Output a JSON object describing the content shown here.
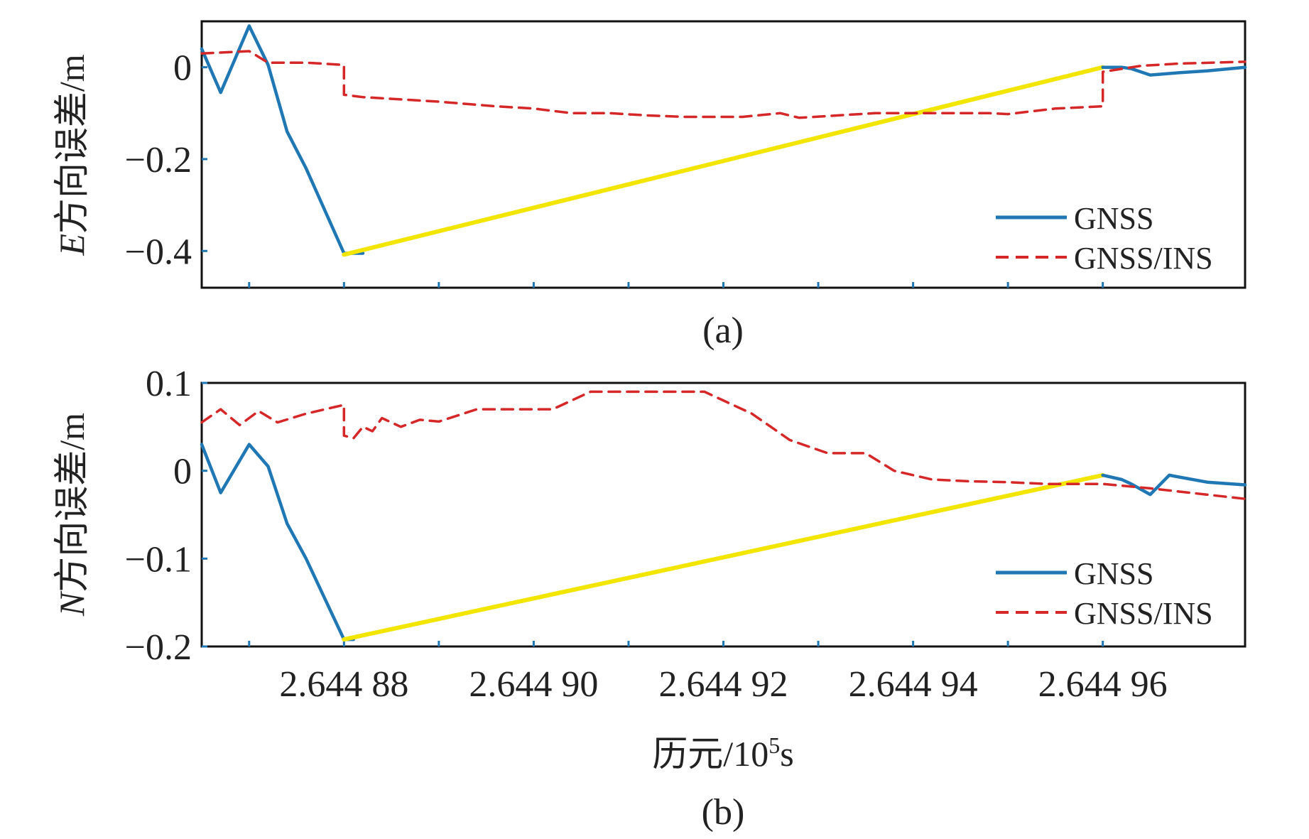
{
  "chart_data": [
    {
      "type": "line",
      "panel": "a",
      "caption": "(a)",
      "ylabel_italic": "E",
      "ylabel": "方向误差/m",
      "ylim": [
        -0.48,
        0.1
      ],
      "yticks": [
        {
          "value": 0,
          "label": "0"
        },
        {
          "value": -0.2,
          "label": "−0.2"
        },
        {
          "value": -0.4,
          "label": "−0.4"
        }
      ],
      "xlim": [
        2.644865,
        2.644975
      ],
      "xticks": [
        2.64487,
        2.64488,
        2.64489,
        2.6449,
        2.64491,
        2.64492,
        2.64493,
        2.64494,
        2.64495,
        2.64496
      ],
      "legend": {
        "placement": "bottom-right",
        "gnss_label": "GNSS",
        "ins_label": "GNSS/INS"
      },
      "series": [
        {
          "name": "GNSS",
          "color": "#1f77b4",
          "x": [
            2.644865,
            2.644867,
            2.64487,
            2.644872,
            2.644874,
            2.644876,
            2.64488,
            2.644881,
            2.644882
          ],
          "y": [
            0.04,
            -0.055,
            0.09,
            0.005,
            -0.14,
            -0.22,
            -0.405,
            -0.405,
            -0.405
          ]
        },
        {
          "name": "GNSS (interpolated gap)",
          "color": "#f2e600",
          "x": [
            2.64488,
            2.64496
          ],
          "y": [
            -0.408,
            0.0
          ]
        },
        {
          "name": "GNSS (end)",
          "color": "#1f77b4",
          "x": [
            2.64496,
            2.644962,
            2.644963,
            2.644965,
            2.644968,
            2.644971,
            2.644975
          ],
          "y": [
            0.0,
            0.0,
            -0.003,
            -0.017,
            -0.012,
            -0.008,
            0.0
          ]
        },
        {
          "name": "GNSS/INS",
          "color": "#d62728",
          "x": [
            2.644865,
            2.64487,
            2.644872,
            2.644876,
            2.64488,
            2.64488,
            2.644882,
            2.644886,
            2.64489,
            2.644893,
            2.644896,
            2.6449,
            2.644904,
            2.644908,
            2.644912,
            2.644916,
            2.644922,
            2.644926,
            2.644928,
            2.644932,
            2.644936,
            2.644942,
            2.644948,
            2.64495,
            2.644955,
            2.64496,
            2.64496,
            2.644964,
            2.644968,
            2.644975
          ],
          "y": [
            0.03,
            0.035,
            0.01,
            0.01,
            0.005,
            -0.06,
            -0.065,
            -0.07,
            -0.075,
            -0.08,
            -0.085,
            -0.09,
            -0.1,
            -0.1,
            -0.105,
            -0.108,
            -0.108,
            -0.1,
            -0.11,
            -0.105,
            -0.1,
            -0.1,
            -0.1,
            -0.102,
            -0.09,
            -0.085,
            -0.01,
            0.003,
            0.008,
            0.012
          ]
        }
      ]
    },
    {
      "type": "line",
      "panel": "b",
      "caption": "(b)",
      "ylabel_italic": "N",
      "ylabel": "方向误差/m",
      "xlabel_prefix": "历元/10",
      "xlabel_exp": "5",
      "xlabel_suffix": "s",
      "ylim": [
        -0.2,
        0.1
      ],
      "yticks": [
        {
          "value": 0.1,
          "label": "0.1"
        },
        {
          "value": 0,
          "label": "0"
        },
        {
          "value": -0.1,
          "label": "−0.1"
        },
        {
          "value": -0.2,
          "label": "−0.2"
        }
      ],
      "xlim": [
        2.644865,
        2.644975
      ],
      "xticks": [
        2.64487,
        2.64488,
        2.64489,
        2.6449,
        2.64491,
        2.64492,
        2.64493,
        2.64494,
        2.64495,
        2.64496
      ],
      "xticklabels": [
        {
          "value": 2.64488,
          "label": "2.644 88"
        },
        {
          "value": 2.6449,
          "label": "2.644 90"
        },
        {
          "value": 2.64492,
          "label": "2.644 92"
        },
        {
          "value": 2.64494,
          "label": "2.644 94"
        },
        {
          "value": 2.64496,
          "label": "2.644 96"
        }
      ],
      "legend": {
        "placement": "bottom-right",
        "gnss_label": "GNSS",
        "ins_label": "GNSS/INS"
      },
      "series": [
        {
          "name": "GNSS",
          "color": "#1f77b4",
          "x": [
            2.644865,
            2.644867,
            2.64487,
            2.644872,
            2.644874,
            2.644876,
            2.64488,
            2.644881
          ],
          "y": [
            0.03,
            -0.025,
            0.03,
            0.005,
            -0.06,
            -0.1,
            -0.192,
            -0.192
          ]
        },
        {
          "name": "GNSS (interpolated gap)",
          "color": "#f2e600",
          "x": [
            2.64488,
            2.64496
          ],
          "y": [
            -0.192,
            -0.005
          ]
        },
        {
          "name": "GNSS (end)",
          "color": "#1f77b4",
          "x": [
            2.64496,
            2.644962,
            2.644963,
            2.644965,
            2.644967,
            2.644971,
            2.644975
          ],
          "y": [
            -0.005,
            -0.01,
            -0.015,
            -0.027,
            -0.005,
            -0.013,
            -0.016
          ]
        },
        {
          "name": "GNSS/INS",
          "color": "#d62728",
          "x": [
            2.644865,
            2.644867,
            2.644869,
            2.644871,
            2.644873,
            2.644876,
            2.64488,
            2.64488,
            2.644881,
            2.644882,
            2.644883,
            2.644884,
            2.644886,
            2.644888,
            2.64489,
            2.644894,
            2.644898,
            2.644902,
            2.644906,
            2.644909,
            2.644913,
            2.644918,
            2.644923,
            2.644927,
            2.644931,
            2.644935,
            2.644938,
            2.644942,
            2.644946,
            2.64495,
            2.644954,
            2.64496,
            2.644965,
            2.644975
          ],
          "y": [
            0.055,
            0.07,
            0.052,
            0.068,
            0.055,
            0.065,
            0.075,
            0.04,
            0.037,
            0.05,
            0.045,
            0.06,
            0.05,
            0.058,
            0.056,
            0.07,
            0.07,
            0.07,
            0.09,
            0.09,
            0.09,
            0.09,
            0.065,
            0.035,
            0.02,
            0.02,
            0.0,
            -0.01,
            -0.012,
            -0.013,
            -0.015,
            -0.015,
            -0.02,
            -0.032
          ]
        }
      ]
    }
  ]
}
